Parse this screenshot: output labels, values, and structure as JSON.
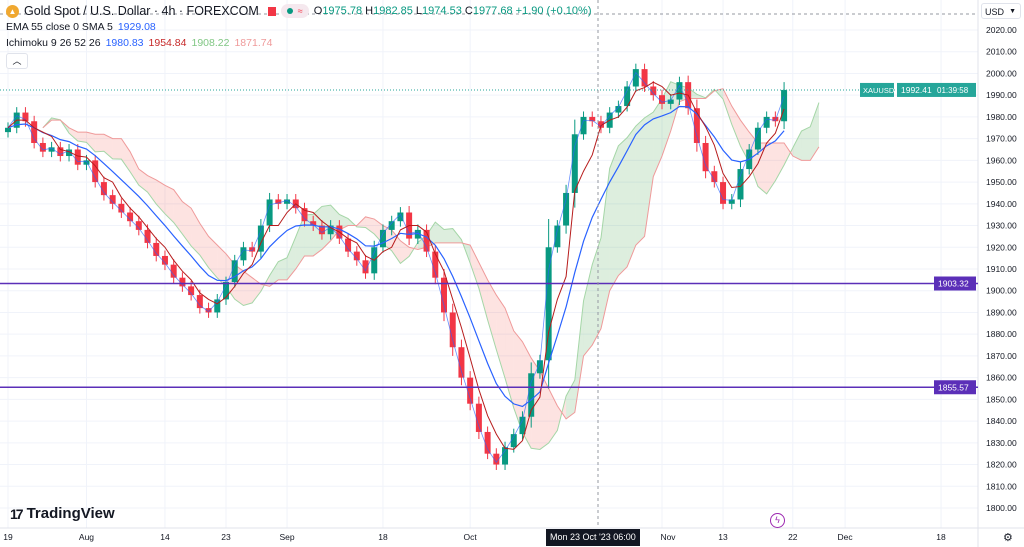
{
  "header": {
    "symbol_title": "Gold Spot / U.S. Dollar · 4h · FOREXCOM",
    "open_label": "O",
    "open": "1975.78",
    "high_label": "H",
    "high": "1982.85",
    "low_label": "L",
    "low": "1974.53",
    "close_label": "C",
    "close": "1977.68",
    "change": "+1.90 (+0.10%)",
    "ema_label": "EMA 55 close 0 SMA 5",
    "ema_value": "1929.08",
    "ichimoku_label": "Ichimoku 9 26 52 26",
    "ichimoku_values": [
      "1980.83",
      "1954.84",
      "1908.22",
      "1871.74"
    ],
    "collapse_icon": "chevron-up-icon"
  },
  "price_axis": {
    "currency": "USD"
  },
  "crosshair_label": "Mon 23 Oct '23  06:00",
  "branding": "TradingView",
  "colors": {
    "up": "#089981",
    "down": "#f23645",
    "ema": "#2962ff",
    "conversion": "#2962ff",
    "base": "#b71c1c",
    "span_a": "#43a047",
    "span_b": "#f44336",
    "hline": "#5b2fb8",
    "last_price": "#26a69a"
  },
  "chart_data": {
    "type": "candlestick",
    "symbol": "XAUUSD",
    "ylim": [
      1795,
      2025
    ],
    "yticks": [
      2020,
      2010,
      2000,
      1990,
      1980,
      1970,
      1960,
      1950,
      1940,
      1930,
      1920,
      1910,
      1900,
      1890,
      1880,
      1870,
      1860,
      1850,
      1840,
      1830,
      1820,
      1810,
      1800
    ],
    "xticks": [
      "19",
      "Aug",
      "14",
      "23",
      "Sep",
      "18",
      "Oct",
      "Nov",
      "13",
      "22",
      "Dec",
      "18"
    ],
    "closes": [
      1975,
      1982,
      1978,
      1968,
      1964,
      1966,
      1962,
      1965,
      1958,
      1960,
      1950,
      1944,
      1940,
      1936,
      1932,
      1928,
      1922,
      1916,
      1912,
      1906,
      1902,
      1898,
      1892,
      1890,
      1896,
      1904,
      1914,
      1920,
      1918,
      1930,
      1942,
      1940,
      1942,
      1938,
      1932,
      1930,
      1926,
      1930,
      1924,
      1918,
      1914,
      1908,
      1920,
      1928,
      1932,
      1936,
      1924,
      1928,
      1918,
      1906,
      1890,
      1874,
      1860,
      1848,
      1835,
      1825,
      1820,
      1828,
      1834,
      1842,
      1862,
      1868,
      1920,
      1930,
      1945,
      1972,
      1980,
      1978,
      1975,
      1982,
      1985,
      1994,
      2002,
      1994,
      1990,
      1986,
      1988,
      1996,
      1984,
      1968,
      1955,
      1950,
      1940,
      1942,
      1956,
      1965,
      1975,
      1980,
      1978,
      1992.41
    ],
    "last_price": {
      "label": "XAUUSD",
      "value": "1992.41",
      "countdown": "01:39:58"
    },
    "horizontal_lines": [
      {
        "value": 1903.32,
        "label": "1903.32"
      },
      {
        "value": 1855.57,
        "label": "1855.57"
      }
    ],
    "indicators": [
      "EMA 55",
      "Ichimoku 9 26 52 26"
    ]
  }
}
